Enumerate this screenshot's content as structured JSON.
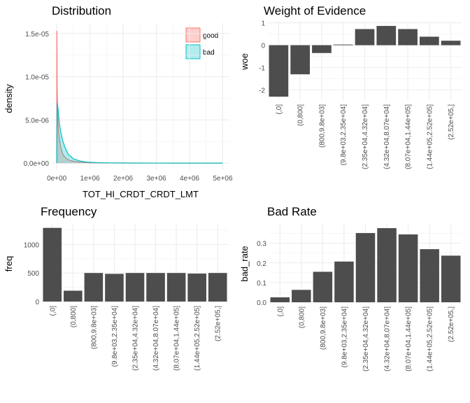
{
  "chart_data": [
    {
      "type": "area",
      "title": "Distribution",
      "xlabel": "TOT_HI_CRDT_CRDT_LMT",
      "ylabel": "density",
      "xlim": [
        -150000,
        5200000
      ],
      "ylim": [
        -800000,
        16200000
      ],
      "x_ticks": [
        0,
        1000000,
        2000000,
        3000000,
        4000000,
        5000000
      ],
      "x_tick_labels": [
        "0e+00",
        "1e+06",
        "2e+06",
        "3e+06",
        "4e+06",
        "5e+06"
      ],
      "y_ticks": [
        0,
        5000000,
        10000000,
        15000000
      ],
      "y_tick_labels": [
        "0.0e+00",
        "5.0e-06",
        "1.0e-05",
        "1.5e-05"
      ],
      "grid": true,
      "legend_position": "top-right",
      "series": [
        {
          "name": "good",
          "color": "#f8766d",
          "points": [
            [
              0,
              0
            ],
            [
              5000,
              15300000
            ],
            [
              12000,
              9000000
            ],
            [
              25000,
              6000000
            ],
            [
              50000,
              3800000
            ],
            [
              100000,
              2200000
            ],
            [
              150000,
              1400000
            ],
            [
              200000,
              900000
            ],
            [
              300000,
              500000
            ],
            [
              400000,
              300000
            ],
            [
              600000,
              150000
            ],
            [
              800000,
              80000
            ],
            [
              1000000,
              40000
            ],
            [
              1500000,
              15000
            ],
            [
              2000000,
              8000
            ],
            [
              3000000,
              3000
            ],
            [
              4000000,
              1500
            ],
            [
              5000000,
              500
            ]
          ]
        },
        {
          "name": "bad",
          "color": "#00bfc4",
          "points": [
            [
              0,
              0
            ],
            [
              15000,
              7000000
            ],
            [
              40000,
              6300000
            ],
            [
              80000,
              4600000
            ],
            [
              120000,
              3600000
            ],
            [
              180000,
              2600000
            ],
            [
              250000,
              1800000
            ],
            [
              350000,
              1000000
            ],
            [
              500000,
              500000
            ],
            [
              700000,
              250000
            ],
            [
              900000,
              120000
            ],
            [
              1200000,
              60000
            ],
            [
              1600000,
              25000
            ],
            [
              2000000,
              10000
            ],
            [
              3000000,
              4000
            ],
            [
              4000000,
              1500
            ],
            [
              5000000,
              500
            ]
          ]
        }
      ]
    },
    {
      "type": "bar",
      "title": "Weight of Evidence",
      "ylabel": "woe",
      "categories": [
        "(,0]",
        "(0,800]",
        "(800,9.8e+03]",
        "(9.8e+03,2.35e+04]",
        "(2.35e+04,4.32e+04]",
        "(4.32e+04,8.07e+04]",
        "(8.07e+04,1.44e+05]",
        "(1.44e+05,2.52e+05]",
        "(2.52e+05,]"
      ],
      "values": [
        -2.3,
        -1.3,
        -0.35,
        0.03,
        0.72,
        0.86,
        0.72,
        0.38,
        0.2
      ],
      "ylim": [
        -2.45,
        1.05
      ],
      "y_ticks": [
        -2,
        -1,
        0,
        1
      ],
      "y_tick_labels": [
        "-2",
        "-1",
        "0",
        "1"
      ],
      "bar_color": "#4d4d4d",
      "grid": true
    },
    {
      "type": "bar",
      "title": "Frequency",
      "ylabel": "freq",
      "categories": [
        "(,0]",
        "(0,800]",
        "(800,9.8e+03]",
        "(9.8e+03,2.35e+04]",
        "(2.35e+04,4.32e+04]",
        "(4.32e+04,8.07e+04]",
        "(8.07e+04,1.44e+05]",
        "(1.44e+05,2.52e+05]",
        "(2.52e+05,]"
      ],
      "values": [
        1290,
        190,
        500,
        485,
        500,
        500,
        500,
        490,
        500
      ],
      "ylim": [
        0,
        1360
      ],
      "y_ticks": [
        0,
        500,
        1000
      ],
      "y_tick_labels": [
        "0",
        "500",
        "1000"
      ],
      "bar_color": "#4d4d4d",
      "grid": true
    },
    {
      "type": "bar",
      "title": "Bad Rate",
      "ylabel": "bad_rate",
      "categories": [
        "(,0]",
        "(0,800]",
        "(800,9.8e+03]",
        "(9.8e+03,2.35e+04]",
        "(2.35e+04,4.32e+04]",
        "(4.32e+04,8.07e+04]",
        "(8.07e+04,1.44e+05]",
        "(1.44e+05,2.52e+05]",
        "(2.52e+05,]"
      ],
      "values": [
        0.025,
        0.063,
        0.155,
        0.207,
        0.352,
        0.377,
        0.345,
        0.27,
        0.237
      ],
      "ylim": [
        0,
        0.395
      ],
      "y_ticks": [
        0,
        0.1,
        0.2,
        0.3
      ],
      "y_tick_labels": [
        "0.0",
        "0.1",
        "0.2",
        "0.3"
      ],
      "bar_color": "#4d4d4d",
      "grid": true
    }
  ]
}
